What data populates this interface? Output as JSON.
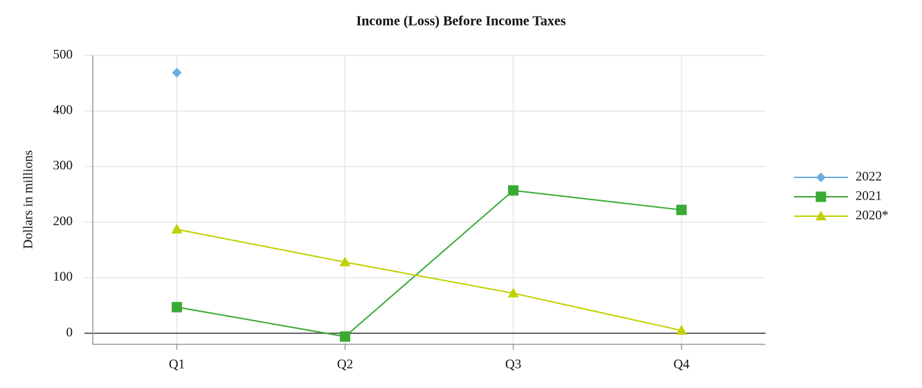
{
  "chart_data": {
    "type": "line",
    "title": "Income (Loss) Before Income Taxes",
    "y_label": "Dollars in millions",
    "categories": [
      "Q1",
      "Q2",
      "Q3",
      "Q4"
    ],
    "series": [
      {
        "name": "2022",
        "color": "#6aaee0",
        "marker": "diamond",
        "values": [
          469,
          null,
          null,
          null
        ]
      },
      {
        "name": "2021",
        "color": "#3aaa35",
        "marker": "square",
        "values": [
          47,
          -6,
          257,
          222
        ]
      },
      {
        "name": "2020*",
        "color": "#c2d100",
        "marker": "triangle",
        "values": [
          187,
          128,
          72,
          5
        ]
      }
    ],
    "ylim": [
      -20,
      500
    ],
    "yticks": [
      0,
      100,
      200,
      300,
      400,
      500
    ],
    "grid": true,
    "legend": "right"
  }
}
